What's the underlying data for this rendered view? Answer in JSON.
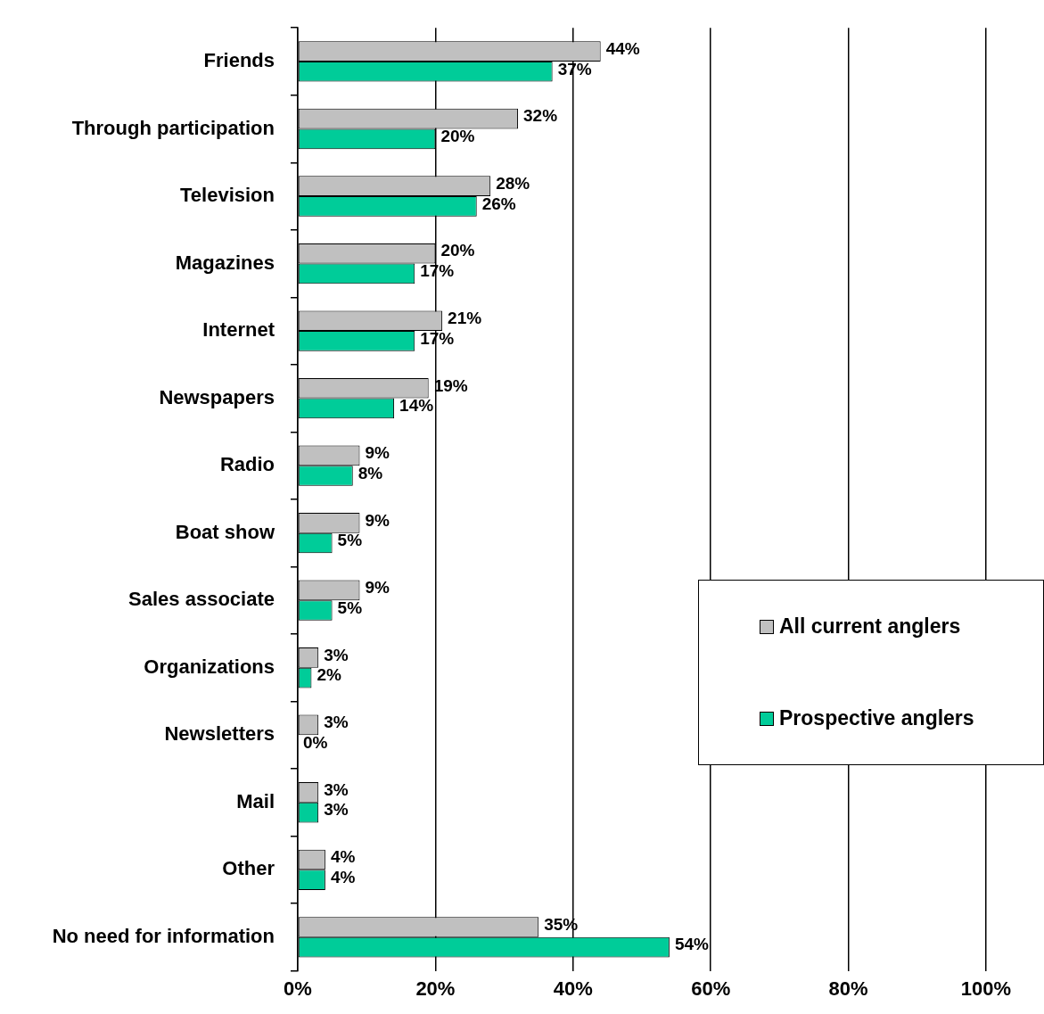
{
  "chart_data": {
    "type": "bar",
    "orientation": "horizontal",
    "categories": [
      "Friends",
      "Through participation",
      "Television",
      "Magazines",
      "Internet",
      "Newspapers",
      "Radio",
      "Boat show",
      "Sales associate",
      "Organizations",
      "Newsletters",
      "Mail",
      "Other",
      "No need for information"
    ],
    "series": [
      {
        "name": "All current anglers",
        "color": "#c0c0c0",
        "values": [
          44,
          32,
          28,
          20,
          21,
          19,
          9,
          9,
          9,
          3,
          3,
          3,
          4,
          35
        ],
        "value_labels": [
          "44%",
          "32%",
          "28%",
          "20%",
          "21%",
          "19%",
          "9%",
          "9%",
          "9%",
          "3%",
          "3%",
          "3%",
          "4%",
          "35%"
        ]
      },
      {
        "name": "Prospective anglers",
        "color": "#00cc99",
        "values": [
          37,
          20,
          26,
          17,
          17,
          14,
          8,
          5,
          5,
          2,
          0,
          3,
          4,
          54
        ],
        "value_labels": [
          "37%",
          "20%",
          "26%",
          "17%",
          "17%",
          "14%",
          "8%",
          "5%",
          "5%",
          "2%",
          "0%",
          "3%",
          "4%",
          "54%"
        ]
      }
    ],
    "xlim": [
      0,
      100
    ],
    "xticks": [
      {
        "value": 0,
        "label": "0%"
      },
      {
        "value": 20,
        "label": "20%"
      },
      {
        "value": 40,
        "label": "40%"
      },
      {
        "value": 60,
        "label": "60%"
      },
      {
        "value": 80,
        "label": "80%"
      },
      {
        "value": 100,
        "label": "100%"
      }
    ],
    "grid": "x",
    "legend": "right"
  }
}
